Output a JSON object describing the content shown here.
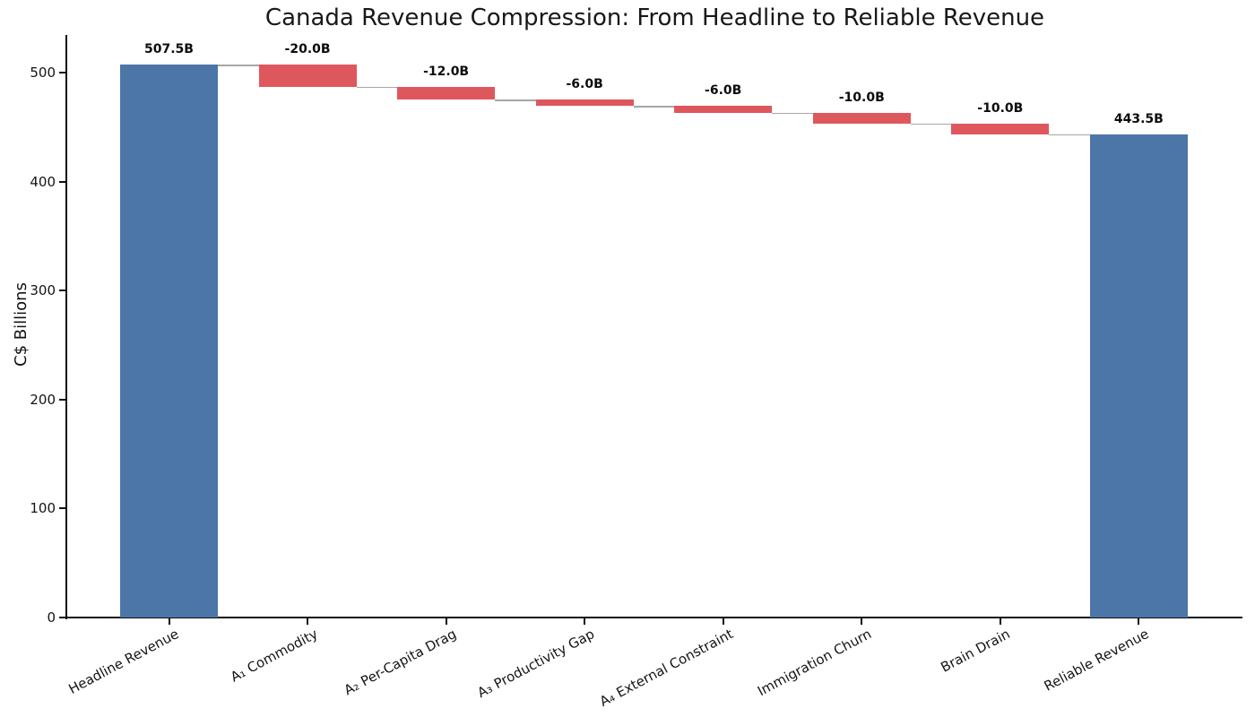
{
  "chart_data": {
    "type": "bar",
    "subtype": "waterfall",
    "title": "Canada Revenue Compression: From Headline to Reliable Revenue",
    "xlabel": "",
    "ylabel": "C$ Billions",
    "categories": [
      "Headline Revenue",
      "A₁ Commodity",
      "A₂ Per-Capita Drag",
      "A₃ Productivity Gap",
      "A₄ External Constraint",
      "Immigration Churn",
      "Brain Drain",
      "Reliable Revenue"
    ],
    "values": [
      507.5,
      -20.0,
      -12.0,
      -6.0,
      -6.0,
      -10.0,
      -10.0,
      443.5
    ],
    "bar_roles": [
      "total",
      "delta",
      "delta",
      "delta",
      "delta",
      "delta",
      "delta",
      "total"
    ],
    "bar_labels": [
      "507.5B",
      "-20.0B",
      "-12.0B",
      "-6.0B",
      "-6.0B",
      "-10.0B",
      "-10.0B",
      "443.5B"
    ],
    "cumulative_levels": [
      507.5,
      487.5,
      475.5,
      469.5,
      463.5,
      453.5,
      443.5
    ],
    "yticks": [
      0,
      100,
      200,
      300,
      400,
      500
    ],
    "ylim": [
      0,
      534
    ],
    "grid": false,
    "legend": "none",
    "colors": {
      "total_bar": "#4c76a8",
      "delta_bar": "#de575d",
      "connector": "#a6a6a6",
      "spine": "#101010",
      "text": "#141414"
    }
  }
}
